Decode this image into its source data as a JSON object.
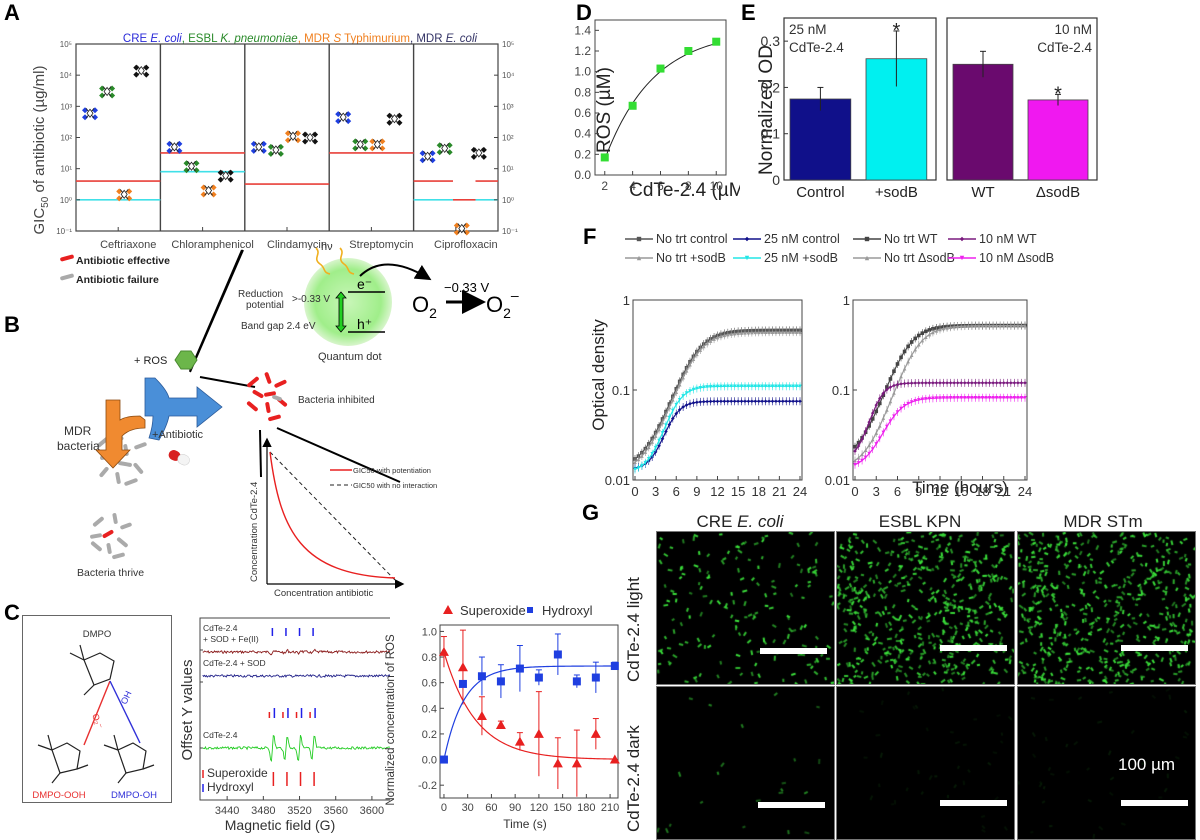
{
  "panel_labels": {
    "A": "A",
    "B": "B",
    "C": "C",
    "D": "D",
    "E": "E",
    "F": "F",
    "G": "G"
  },
  "chart_data": [
    {
      "id": "A",
      "type": "scatter",
      "title_parts": [
        {
          "text": "CRE ",
          "color": "#2a2ad8",
          "italic": false
        },
        {
          "text": "E. coli",
          "color": "#2a2ad8",
          "italic": true
        },
        {
          "text": ", ESBL ",
          "color": "#2a8a2a",
          "italic": false
        },
        {
          "text": "K. pneumoniae",
          "color": "#2a8a2a",
          "italic": true
        },
        {
          "text": ", MDR ",
          "color": "#f08020",
          "italic": false
        },
        {
          "text": "S",
          "color": "#f08020",
          "italic": true
        },
        {
          "text": " Typhimurium",
          "color": "#f08020",
          "italic": false
        },
        {
          "text": ", MDR ",
          "color": "#333366",
          "italic": false
        },
        {
          "text": "E. coli",
          "color": "#333366",
          "italic": true
        }
      ],
      "ylabel": "GIC50 of antibiotic (µg/ml)",
      "ylabel_main": "GIC",
      "ylabel_sub": "50",
      "ylabel_rest": " of antibiotic (µg/ml)",
      "yscale": "log",
      "ylim": [
        0.1,
        100000
      ],
      "yticks": [
        "10⁻¹",
        "10⁰",
        "10¹",
        "10²",
        "10³",
        "10⁴",
        "10⁵"
      ],
      "categories": [
        "Ceftriaxone",
        "Chloramphenicol",
        "Clindamycin",
        "Streptomycin",
        "Ciprofloxacin"
      ],
      "series_colors": {
        "CRE E. coli": "#1f3fe0",
        "ESBL K. pneumoniae": "#2a8a2a",
        "MDR S Typhimurium": "#f08020",
        "MDR E. coli": "#111111"
      },
      "series": [
        {
          "name": "CRE E. coli",
          "values": [
            600,
            50,
            50,
            450,
            25
          ]
        },
        {
          "name": "ESBL K. pneumoniae",
          "values": [
            3000,
            12,
            40,
            60,
            45
          ]
        },
        {
          "name": "MDR S Typhimurium",
          "values": [
            1.5,
            2,
            110,
            60,
            0.12
          ]
        },
        {
          "name": "MDR E. coli",
          "values": [
            14000,
            6,
            100,
            400,
            32
          ]
        }
      ],
      "breakpoints": [
        {
          "category": "Ceftriaxone",
          "red": 4,
          "cyan": 1
        },
        {
          "category": "Chloramphenicol",
          "red": 32,
          "cyan": 8
        },
        {
          "category": "Clindamycin",
          "red": 3.2,
          "cyan": null
        },
        {
          "category": "Streptomycin",
          "red": 32,
          "cyan": null
        },
        {
          "category": "Ciprofloxacin",
          "red": 4,
          "cyan": 1,
          "red_mid": 1
        }
      ],
      "line_colors": {
        "red": "#e8403a",
        "cyan": "#40e0e8"
      }
    },
    {
      "id": "D",
      "type": "scatter",
      "title": "",
      "xlabel": "CdTe-2.4 (µM)",
      "ylabel": "ROS (µM)",
      "x": [
        2,
        4,
        6,
        8,
        10
      ],
      "y": [
        0.17,
        0.67,
        1.03,
        1.2,
        1.29
      ],
      "xlim": [
        1.3,
        10.7
      ],
      "ylim": [
        0,
        1.5
      ],
      "xticks": [
        "2",
        "4",
        "6",
        "8",
        "10"
      ],
      "yticks": [
        "0.0",
        "0.2",
        "0.4",
        "0.6",
        "0.8",
        "1.0",
        "1.2",
        "1.4"
      ],
      "marker_color": "#33dd33",
      "fit_line": true
    },
    {
      "id": "E",
      "type": "bar",
      "ylabel": "Normalized  OD",
      "ylim": [
        0,
        0.35
      ],
      "yticks": [
        "0",
        "0.1",
        "0.2",
        "0.3"
      ],
      "groups": [
        {
          "annotation": [
            "25 nM",
            "CdTe-2.4"
          ],
          "categories": [
            "Control",
            "+sodB"
          ],
          "values": [
            0.175,
            0.262
          ],
          "errors": [
            0.025,
            0.06
          ],
          "colors": [
            "#10108a",
            "#00f0f0"
          ],
          "significant": [
            false,
            true
          ]
        },
        {
          "annotation": [
            "10 nM",
            "CdTe-2.4"
          ],
          "categories": [
            "WT",
            "ΔsodB"
          ],
          "values": [
            0.25,
            0.173
          ],
          "errors": [
            0.028,
            0.012
          ],
          "colors": [
            "#6a0a6e",
            "#f018f0"
          ],
          "significant": [
            false,
            true
          ]
        }
      ]
    },
    {
      "id": "F",
      "type": "line",
      "xlabel": "Time  (hours)",
      "ylabel": "Optical density",
      "yscale": "log",
      "ylim": [
        0.01,
        1
      ],
      "xlim": [
        0,
        24
      ],
      "xticks": [
        "0",
        "3",
        "6",
        "9",
        "12",
        "15",
        "18",
        "21",
        "24"
      ],
      "yticks": [
        "0.01",
        "0.1",
        "1"
      ],
      "subplots": [
        {
          "legend": [
            "No trt control",
            "25 nM  control",
            "No trt +sodB",
            "25 nM  +sodB"
          ],
          "series": [
            {
              "name": "No trt control",
              "color": "#555555",
              "marker": "square",
              "params": {
                "y0": 0.013,
                "ymax": 0.46,
                "tmid": 8.5,
                "k": 0.55
              }
            },
            {
              "name": "No trt +sodB",
              "color": "#999999",
              "marker": "triangle",
              "params": {
                "y0": 0.012,
                "ymax": 0.44,
                "tmid": 8.6,
                "k": 0.55
              }
            },
            {
              "name": "25 nM  control",
              "color": "#10108a",
              "marker": "diamond",
              "params": {
                "y0": 0.013,
                "ymax": 0.075,
                "tmid": 5.2,
                "k": 0.9
              }
            },
            {
              "name": "25 nM  +sodB",
              "color": "#22e6e6",
              "marker": "down-triangle",
              "params": {
                "y0": 0.012,
                "ymax": 0.11,
                "tmid": 5.6,
                "k": 0.8
              }
            }
          ]
        },
        {
          "legend": [
            "No trt WT",
            "10 nM WT",
            "No trt ΔsodB",
            "10 nM ΔsodB"
          ],
          "series": [
            {
              "name": "No trt WT",
              "color": "#444444",
              "marker": "square",
              "params": {
                "y0": 0.016,
                "ymax": 0.52,
                "tmid": 7.0,
                "k": 0.6
              }
            },
            {
              "name": "No trt ΔsodB",
              "color": "#9a9a9a",
              "marker": "triangle",
              "params": {
                "y0": 0.013,
                "ymax": 0.52,
                "tmid": 8.3,
                "k": 0.6
              }
            },
            {
              "name": "10 nM WT",
              "color": "#7a1a7e",
              "marker": "diamond",
              "params": {
                "y0": 0.016,
                "ymax": 0.12,
                "tmid": 3.0,
                "k": 1.0
              }
            },
            {
              "name": "10 nM ΔsodB",
              "color": "#ee22ee",
              "marker": "down-triangle",
              "params": {
                "y0": 0.013,
                "ymax": 0.082,
                "tmid": 5.2,
                "k": 0.7
              }
            }
          ]
        }
      ]
    },
    {
      "id": "C-EPR",
      "type": "line",
      "xlabel": "Magnetic field (G)",
      "ylabel": "Offset Y values",
      "xlim": [
        3410,
        3620
      ],
      "xticks": [
        "3440",
        "3480",
        "3520",
        "3560",
        "3600"
      ],
      "traces": [
        {
          "label": [
            "CdTe-2.4",
            "+ SOD + Fe(II)"
          ],
          "color": "#8a1a1a",
          "amplitude": "small"
        },
        {
          "label": [
            "CdTe-2.4 + SOD"
          ],
          "color": "#22228a",
          "amplitude": "flat"
        },
        {
          "label": [
            "CdTe-2.4"
          ],
          "color": "#22cc22",
          "amplitude": "large"
        }
      ],
      "peak_fields": [
        3490,
        3505,
        3520,
        3535
      ],
      "legend": [
        {
          "text": "Superoxide",
          "arrow_color": "#e82020"
        },
        {
          "text": "Hydroxyl",
          "arrow_color": "#2020e8"
        }
      ]
    },
    {
      "id": "C-kinetics",
      "type": "scatter",
      "xlabel": "Time (s)",
      "ylabel": "Normalized concentration of ROS",
      "xlim": [
        -5,
        220
      ],
      "ylim": [
        -0.3,
        1.05
      ],
      "xticks": [
        "0",
        "30",
        "60",
        "90",
        "120",
        "150",
        "180",
        "210"
      ],
      "yticks": [
        "-0.2",
        "0.0",
        "0.2",
        "0.4",
        "0.6",
        "0.8",
        "1.0"
      ],
      "series": [
        {
          "name": "Superoxide",
          "color": "#e82020",
          "marker": "triangle",
          "x": [
            0,
            24,
            48,
            72,
            96,
            120,
            144,
            168,
            192,
            216
          ],
          "y": [
            0.84,
            0.72,
            0.34,
            0.27,
            0.14,
            0.2,
            -0.03,
            -0.03,
            0.2,
            0.0
          ],
          "err": [
            0.12,
            0.29,
            0.15,
            0.03,
            0.07,
            0.33,
            0.2,
            0.26,
            0.12,
            0.0
          ],
          "fit": {
            "a": 0.84,
            "tau": 40,
            "c": 0
          }
        },
        {
          "name": "Hydroxyl",
          "color": "#1f3fe0",
          "marker": "square",
          "x": [
            0,
            24,
            48,
            72,
            96,
            120,
            144,
            168,
            192,
            216
          ],
          "y": [
            0.0,
            0.59,
            0.65,
            0.61,
            0.71,
            0.64,
            0.82,
            0.61,
            0.64,
            0.73
          ],
          "err": [
            0.0,
            0.0,
            0.15,
            0.13,
            0.18,
            0.06,
            0.16,
            0.05,
            0.12,
            0.03
          ],
          "fit": {
            "a": 0.73,
            "tau": 25
          }
        }
      ]
    }
  ],
  "schematic": {
    "legend": [
      {
        "text": "Antibiotic effective",
        "color": "#e82020"
      },
      {
        "text": "Antibiotic failure",
        "color": "#aaaaaa"
      }
    ],
    "ros_label": "+ ROS",
    "mdr_label": [
      "MDR",
      "bacteria"
    ],
    "antibiotic_label": "+Antibiotic",
    "inhibited_label": "Bacteria inhibited",
    "thrive_label": "Bacteria thrive",
    "qd": {
      "hv": "hν",
      "reduction": [
        "Reduction",
        "potential"
      ],
      "reduction_value": ">-0.33 V",
      "band_gap": "Band gap 2.4 eV",
      "electron": "e⁻",
      "hole": "h⁺",
      "qd_label": "Quantum  dot",
      "o2": "O",
      "o2_sub": "2",
      "o2_minus": "O",
      "o2_minus_sub": "2",
      "o2_minus_sup": "–",
      "arrow_label": "−0.33 V"
    },
    "isobologram": {
      "ylabel": "Concentration CdTe-2.4",
      "xlabel": "Concentration antibiotic",
      "legend": [
        {
          "text": "GIC50 with potentiation",
          "color": "#e82020",
          "dash": false
        },
        {
          "text": "GIC50 with no interaction",
          "color": "#222222",
          "dash": true
        }
      ]
    }
  },
  "dmpo": {
    "title": "DMPO",
    "left_product": "DMPO-OOH",
    "right_product": "DMPO-OH",
    "left_reagent": "O₂⁻",
    "right_reagent": "OH",
    "left_color": "#e83030",
    "right_color": "#3030d8"
  },
  "microscopy": {
    "columns": [
      {
        "title": "CRE ",
        "title_italic": "E. coli",
        "density": "low"
      },
      {
        "title": "ESBL KPN",
        "title_italic": "",
        "density": "high"
      },
      {
        "title": "MDR STm",
        "title_italic": "",
        "density": "high"
      }
    ],
    "rows": [
      "CdTe-2.4 light",
      "CdTe-2.4 dark"
    ],
    "scale_bar_label": "100 µm"
  }
}
